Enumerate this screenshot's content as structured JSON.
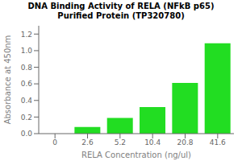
{
  "chart_data": {
    "type": "bar",
    "title": "DNA Binding Activity of RELA (NFkB p65)",
    "subtitle": "Purified Protein (TP320780)",
    "categories": [
      "0",
      "2.6",
      "5.2",
      "10.4",
      "20.8",
      "41.6"
    ],
    "values": [
      0.0,
      0.08,
      0.19,
      0.32,
      0.61,
      1.09
    ],
    "color": "#22dd22",
    "xlabel": "RELA Concentration (ng/ul)",
    "ylabel": "Absorbance at 450nm",
    "ylim": [
      0,
      1.3
    ],
    "yticks": [
      {
        "value": 0,
        "label": "0.0"
      },
      0.2,
      0.4,
      0.6,
      0.8,
      {
        "value": 1,
        "label": "1.0"
      },
      1.2
    ],
    "grid": false
  }
}
